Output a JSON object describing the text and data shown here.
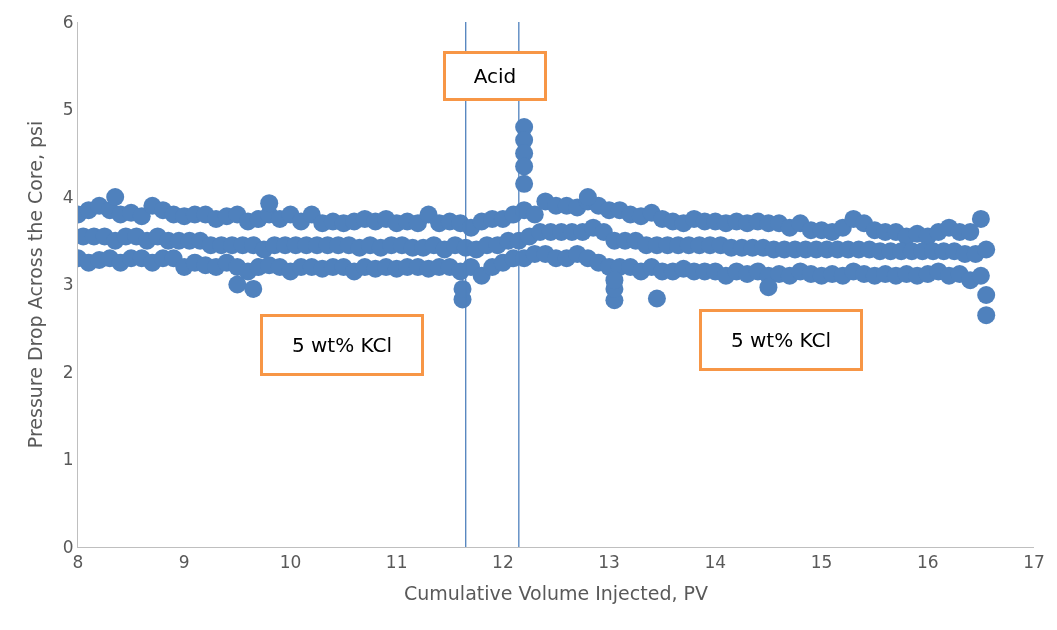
{
  "chart_data": {
    "type": "scatter",
    "xlabel": "Cumulative Volume Injected, PV",
    "ylabel": "Pressure Drop Across the Core, psi",
    "xlim": [
      8,
      17
    ],
    "xticks": [
      8,
      9,
      10,
      11,
      12,
      13,
      14,
      15,
      16,
      17
    ],
    "ylim": [
      0,
      6
    ],
    "yticks": [
      0,
      1,
      2,
      3,
      4,
      5,
      6
    ],
    "marker": "circle",
    "series": [
      {
        "color": "#4f81bd",
        "x": [
          8.0,
          8.1,
          8.2,
          8.3,
          8.4,
          8.5,
          8.6,
          8.7,
          8.8,
          8.9,
          9.0,
          9.1,
          9.2,
          9.3,
          9.4,
          9.5,
          9.6,
          9.7,
          9.8,
          9.9,
          10.0,
          10.1,
          10.2,
          10.3,
          10.4,
          10.5,
          10.6,
          10.7,
          10.8,
          10.9,
          11.0,
          11.1,
          11.2,
          11.3,
          11.4,
          11.5,
          11.6,
          11.7,
          11.8,
          11.9,
          12.0,
          12.1,
          12.2,
          12.3,
          12.4,
          12.5,
          12.6,
          12.7,
          12.8,
          12.9,
          13.0,
          13.1,
          13.2,
          13.3,
          13.4,
          13.5,
          13.6,
          13.7,
          13.8,
          13.9,
          14.0,
          14.1,
          14.2,
          14.3,
          14.4,
          14.5,
          14.6,
          14.7,
          14.8,
          14.9,
          15.0,
          15.1,
          15.2,
          15.3,
          15.4,
          15.5,
          15.6,
          15.7,
          15.8,
          15.9,
          16.0,
          16.1,
          16.2,
          16.3,
          16.4,
          16.5
        ],
        "values": [
          3.8,
          3.85,
          3.9,
          3.85,
          3.8,
          3.82,
          3.78,
          3.9,
          3.85,
          3.8,
          3.78,
          3.8,
          3.8,
          3.75,
          3.78,
          3.8,
          3.72,
          3.75,
          3.8,
          3.75,
          3.8,
          3.72,
          3.8,
          3.7,
          3.72,
          3.7,
          3.72,
          3.75,
          3.72,
          3.75,
          3.7,
          3.72,
          3.7,
          3.8,
          3.7,
          3.72,
          3.7,
          3.65,
          3.72,
          3.75,
          3.75,
          3.8,
          3.85,
          3.8,
          3.95,
          3.9,
          3.9,
          3.88,
          3.95,
          3.9,
          3.85,
          3.85,
          3.8,
          3.78,
          3.82,
          3.75,
          3.72,
          3.7,
          3.75,
          3.72,
          3.72,
          3.7,
          3.72,
          3.7,
          3.72,
          3.7,
          3.7,
          3.65,
          3.7,
          3.62,
          3.62,
          3.6,
          3.65,
          3.75,
          3.7,
          3.62,
          3.6,
          3.6,
          3.55,
          3.58,
          3.55,
          3.6,
          3.65,
          3.6,
          3.6,
          3.75
        ]
      },
      {
        "color": "#4f81bd",
        "x": [
          8.05,
          8.15,
          8.25,
          8.35,
          8.45,
          8.55,
          8.65,
          8.75,
          8.85,
          8.95,
          9.05,
          9.15,
          9.25,
          9.35,
          9.45,
          9.55,
          9.65,
          9.75,
          9.85,
          9.95,
          10.05,
          10.15,
          10.25,
          10.35,
          10.45,
          10.55,
          10.65,
          10.75,
          10.85,
          10.95,
          11.05,
          11.15,
          11.25,
          11.35,
          11.45,
          11.55,
          11.65,
          11.75,
          11.85,
          11.95,
          12.05,
          12.15,
          12.25,
          12.35,
          12.45,
          12.55,
          12.65,
          12.75,
          12.85,
          12.95,
          13.05,
          13.15,
          13.25,
          13.35,
          13.45,
          13.55,
          13.65,
          13.75,
          13.85,
          13.95,
          14.05,
          14.15,
          14.25,
          14.35,
          14.45,
          14.55,
          14.65,
          14.75,
          14.85,
          14.95,
          15.05,
          15.15,
          15.25,
          15.35,
          15.45,
          15.55,
          15.65,
          15.75,
          15.85,
          15.95,
          16.05,
          16.15,
          16.25,
          16.35,
          16.45,
          16.55
        ],
        "values": [
          3.55,
          3.55,
          3.55,
          3.5,
          3.55,
          3.55,
          3.5,
          3.55,
          3.5,
          3.5,
          3.5,
          3.5,
          3.45,
          3.45,
          3.45,
          3.45,
          3.45,
          3.4,
          3.45,
          3.45,
          3.45,
          3.45,
          3.45,
          3.45,
          3.45,
          3.45,
          3.42,
          3.45,
          3.42,
          3.45,
          3.45,
          3.42,
          3.42,
          3.45,
          3.4,
          3.45,
          3.42,
          3.4,
          3.45,
          3.45,
          3.5,
          3.5,
          3.55,
          3.6,
          3.6,
          3.6,
          3.6,
          3.6,
          3.65,
          3.6,
          3.5,
          3.5,
          3.5,
          3.45,
          3.45,
          3.45,
          3.45,
          3.45,
          3.45,
          3.45,
          3.45,
          3.42,
          3.42,
          3.42,
          3.42,
          3.4,
          3.4,
          3.4,
          3.4,
          3.4,
          3.4,
          3.4,
          3.4,
          3.4,
          3.4,
          3.38,
          3.38,
          3.38,
          3.38,
          3.38,
          3.38,
          3.38,
          3.38,
          3.35,
          3.35,
          3.4
        ]
      },
      {
        "color": "#4f81bd",
        "x": [
          8.0,
          8.1,
          8.2,
          8.3,
          8.4,
          8.5,
          8.6,
          8.7,
          8.8,
          8.9,
          9.0,
          9.1,
          9.2,
          9.3,
          9.4,
          9.5,
          9.6,
          9.7,
          9.8,
          9.9,
          10.0,
          10.1,
          10.2,
          10.3,
          10.4,
          10.5,
          10.6,
          10.7,
          10.8,
          10.9,
          11.0,
          11.1,
          11.2,
          11.3,
          11.4,
          11.5,
          11.6,
          11.7,
          11.8,
          11.9,
          12.0,
          12.1,
          12.2,
          12.3,
          12.4,
          12.5,
          12.6,
          12.7,
          12.8,
          12.9,
          13.0,
          13.1,
          13.2,
          13.3,
          13.4,
          13.5,
          13.6,
          13.7,
          13.8,
          13.9,
          14.0,
          14.1,
          14.2,
          14.3,
          14.4,
          14.5,
          14.6,
          14.7,
          14.8,
          14.9,
          15.0,
          15.1,
          15.2,
          15.3,
          15.4,
          15.5,
          15.6,
          15.7,
          15.8,
          15.9,
          16.0,
          16.1,
          16.2,
          16.3,
          16.4,
          16.5
        ],
        "values": [
          3.3,
          3.25,
          3.28,
          3.3,
          3.25,
          3.3,
          3.3,
          3.25,
          3.3,
          3.3,
          3.2,
          3.25,
          3.22,
          3.2,
          3.25,
          3.2,
          3.15,
          3.2,
          3.22,
          3.2,
          3.15,
          3.2,
          3.2,
          3.18,
          3.2,
          3.2,
          3.15,
          3.2,
          3.18,
          3.2,
          3.18,
          3.2,
          3.2,
          3.18,
          3.2,
          3.2,
          3.15,
          3.2,
          3.1,
          3.2,
          3.25,
          3.3,
          3.3,
          3.35,
          3.35,
          3.3,
          3.3,
          3.35,
          3.3,
          3.25,
          3.2,
          3.2,
          3.2,
          3.15,
          3.2,
          3.15,
          3.15,
          3.18,
          3.15,
          3.15,
          3.15,
          3.1,
          3.15,
          3.12,
          3.15,
          3.1,
          3.12,
          3.1,
          3.15,
          3.12,
          3.1,
          3.12,
          3.1,
          3.15,
          3.12,
          3.1,
          3.12,
          3.1,
          3.12,
          3.1,
          3.12,
          3.15,
          3.1,
          3.12,
          3.05,
          3.1
        ]
      },
      {
        "color": "#4f81bd",
        "x": [
          8.35,
          9.8,
          9.5,
          9.65,
          11.62,
          11.62,
          12.2,
          12.2,
          12.2,
          12.2,
          12.2,
          12.8,
          13.05,
          13.05,
          13.05,
          13.45,
          14.5,
          16.55,
          16.55
        ],
        "values": [
          4.0,
          3.93,
          3.0,
          2.95,
          2.83,
          2.95,
          4.8,
          4.65,
          4.5,
          4.35,
          4.15,
          4.0,
          2.82,
          2.95,
          3.05,
          2.84,
          2.97,
          2.65,
          2.88
        ]
      }
    ],
    "ref_lines": [
      {
        "axis": "x",
        "value": 11.65,
        "color": "#4f81bd"
      },
      {
        "axis": "x",
        "value": 12.15,
        "color": "#4f81bd"
      }
    ],
    "annotations": [
      "Acid",
      "5 wt% KCl",
      "5 wt% KCl"
    ]
  }
}
